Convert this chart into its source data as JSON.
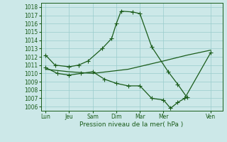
{
  "xlabel": "Pression niveau de la mer( hPa )",
  "bg_color": "#cce8e8",
  "grid_color": "#99cccc",
  "line_color": "#1a5c1a",
  "xtick_labels": [
    "Lun",
    "Jeu",
    "Sam",
    "Dim",
    "Mar",
    "Mer",
    "Ven"
  ],
  "xtick_positions": [
    0,
    1,
    2,
    3,
    4,
    5,
    7
  ],
  "xlim": [
    -0.2,
    7.5
  ],
  "ylim": [
    1005.5,
    1018.5
  ],
  "yticks": [
    1006,
    1007,
    1008,
    1009,
    1010,
    1011,
    1012,
    1013,
    1014,
    1015,
    1016,
    1017,
    1018
  ],
  "series1_x": [
    0,
    0.4,
    1.0,
    1.4,
    1.8,
    2.4,
    2.8,
    3.0,
    3.2,
    3.7,
    4.0,
    4.5,
    5.2,
    5.6,
    6.0
  ],
  "series1_y": [
    1012.2,
    1011.0,
    1010.8,
    1011.0,
    1011.5,
    1013.0,
    1014.2,
    1016.0,
    1017.5,
    1017.4,
    1017.2,
    1013.2,
    1010.2,
    1008.7,
    1007.1
  ],
  "series2_x": [
    0,
    0.5,
    1.0,
    1.5,
    2.0,
    2.5,
    3.0,
    3.5,
    4.0,
    4.5,
    5.0,
    5.3,
    5.6,
    5.9,
    7.0
  ],
  "series2_y": [
    1010.7,
    1010.0,
    1009.8,
    1010.0,
    1010.2,
    1009.3,
    1008.8,
    1008.5,
    1008.5,
    1007.0,
    1006.8,
    1005.8,
    1006.5,
    1007.0,
    1012.5
  ],
  "series3_x": [
    0,
    1.0,
    2.0,
    3.5,
    5.0,
    6.0,
    7.0
  ],
  "series3_y": [
    1010.5,
    1010.2,
    1010.0,
    1010.5,
    1011.5,
    1012.2,
    1012.8
  ],
  "marker": "+",
  "markersize": 4,
  "linewidth": 0.9,
  "tick_fontsize": 5.5,
  "xlabel_fontsize": 6.5
}
